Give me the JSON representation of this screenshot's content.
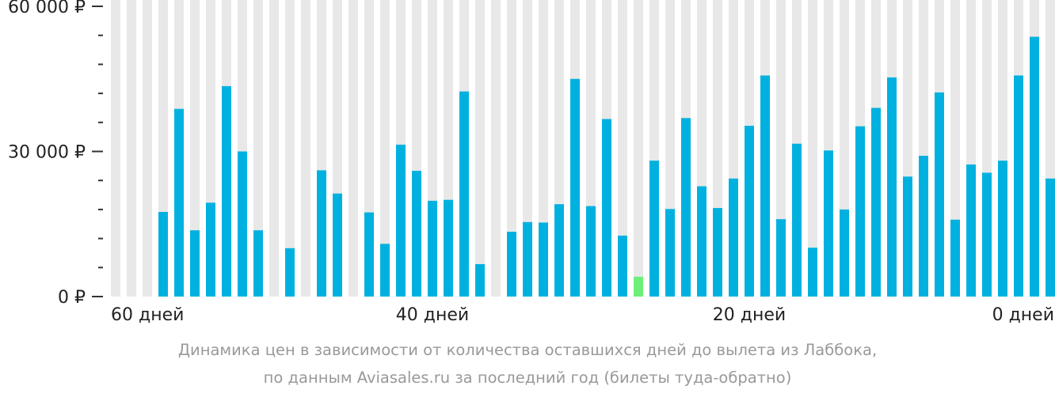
{
  "chart_data": {
    "type": "bar",
    "categories": [
      "60",
      "59",
      "58",
      "57",
      "56",
      "55",
      "54",
      "53",
      "52",
      "51",
      "50",
      "49",
      "48",
      "47",
      "46",
      "45",
      "44",
      "43",
      "42",
      "41",
      "40",
      "39",
      "38",
      "37",
      "36",
      "35",
      "34",
      "33",
      "32",
      "31",
      "30",
      "29",
      "28",
      "27",
      "26",
      "25",
      "24",
      "23",
      "22",
      "21",
      "20",
      "19",
      "18",
      "17",
      "16",
      "15",
      "14",
      "13",
      "12",
      "11",
      "10",
      "9",
      "8",
      "7",
      "6",
      "5",
      "4",
      "3",
      "2",
      "1",
      "0"
    ],
    "values": [
      null,
      null,
      null,
      17500,
      38800,
      13700,
      19400,
      43500,
      30000,
      13700,
      null,
      10000,
      null,
      26100,
      21300,
      null,
      17400,
      10900,
      31400,
      26000,
      19800,
      20000,
      42400,
      6700,
      null,
      13400,
      15400,
      15300,
      19100,
      45000,
      18700,
      36700,
      12600,
      4100,
      28100,
      18100,
      36900,
      22800,
      18300,
      24400,
      35300,
      45700,
      16000,
      31600,
      10100,
      30200,
      18000,
      35200,
      39000,
      45300,
      24800,
      29100,
      42200,
      15900,
      27300,
      25600,
      28100,
      45700,
      53700,
      24400,
      null
    ],
    "highlight_index": 33,
    "ylim": [
      0,
      60000
    ],
    "yticks": [
      {
        "value": 0,
        "label": "0 ₽"
      },
      {
        "value": 30000,
        "label": "30 000 ₽"
      },
      {
        "value": 60000,
        "label": "60 000 ₽"
      }
    ],
    "minor_ytick_step": 6000,
    "xticks": [
      {
        "index": 0,
        "label": "60 дней"
      },
      {
        "index": 20,
        "label": "40 дней"
      },
      {
        "index": 40,
        "label": "20 дней"
      },
      {
        "index": 60,
        "label": "0 дней"
      }
    ],
    "bar_color": "#00b1e0",
    "highlight_color": "#6cf07a",
    "background_bar_color": "#e8e8e8",
    "tick_color": "#333333"
  },
  "caption": {
    "line1": "Динамика цен в зависимости от количества оставшихся дней до вылета из Лаббока,",
    "line2": "по данным Aviasales.ru за последний год (билеты туда-обратно)"
  }
}
